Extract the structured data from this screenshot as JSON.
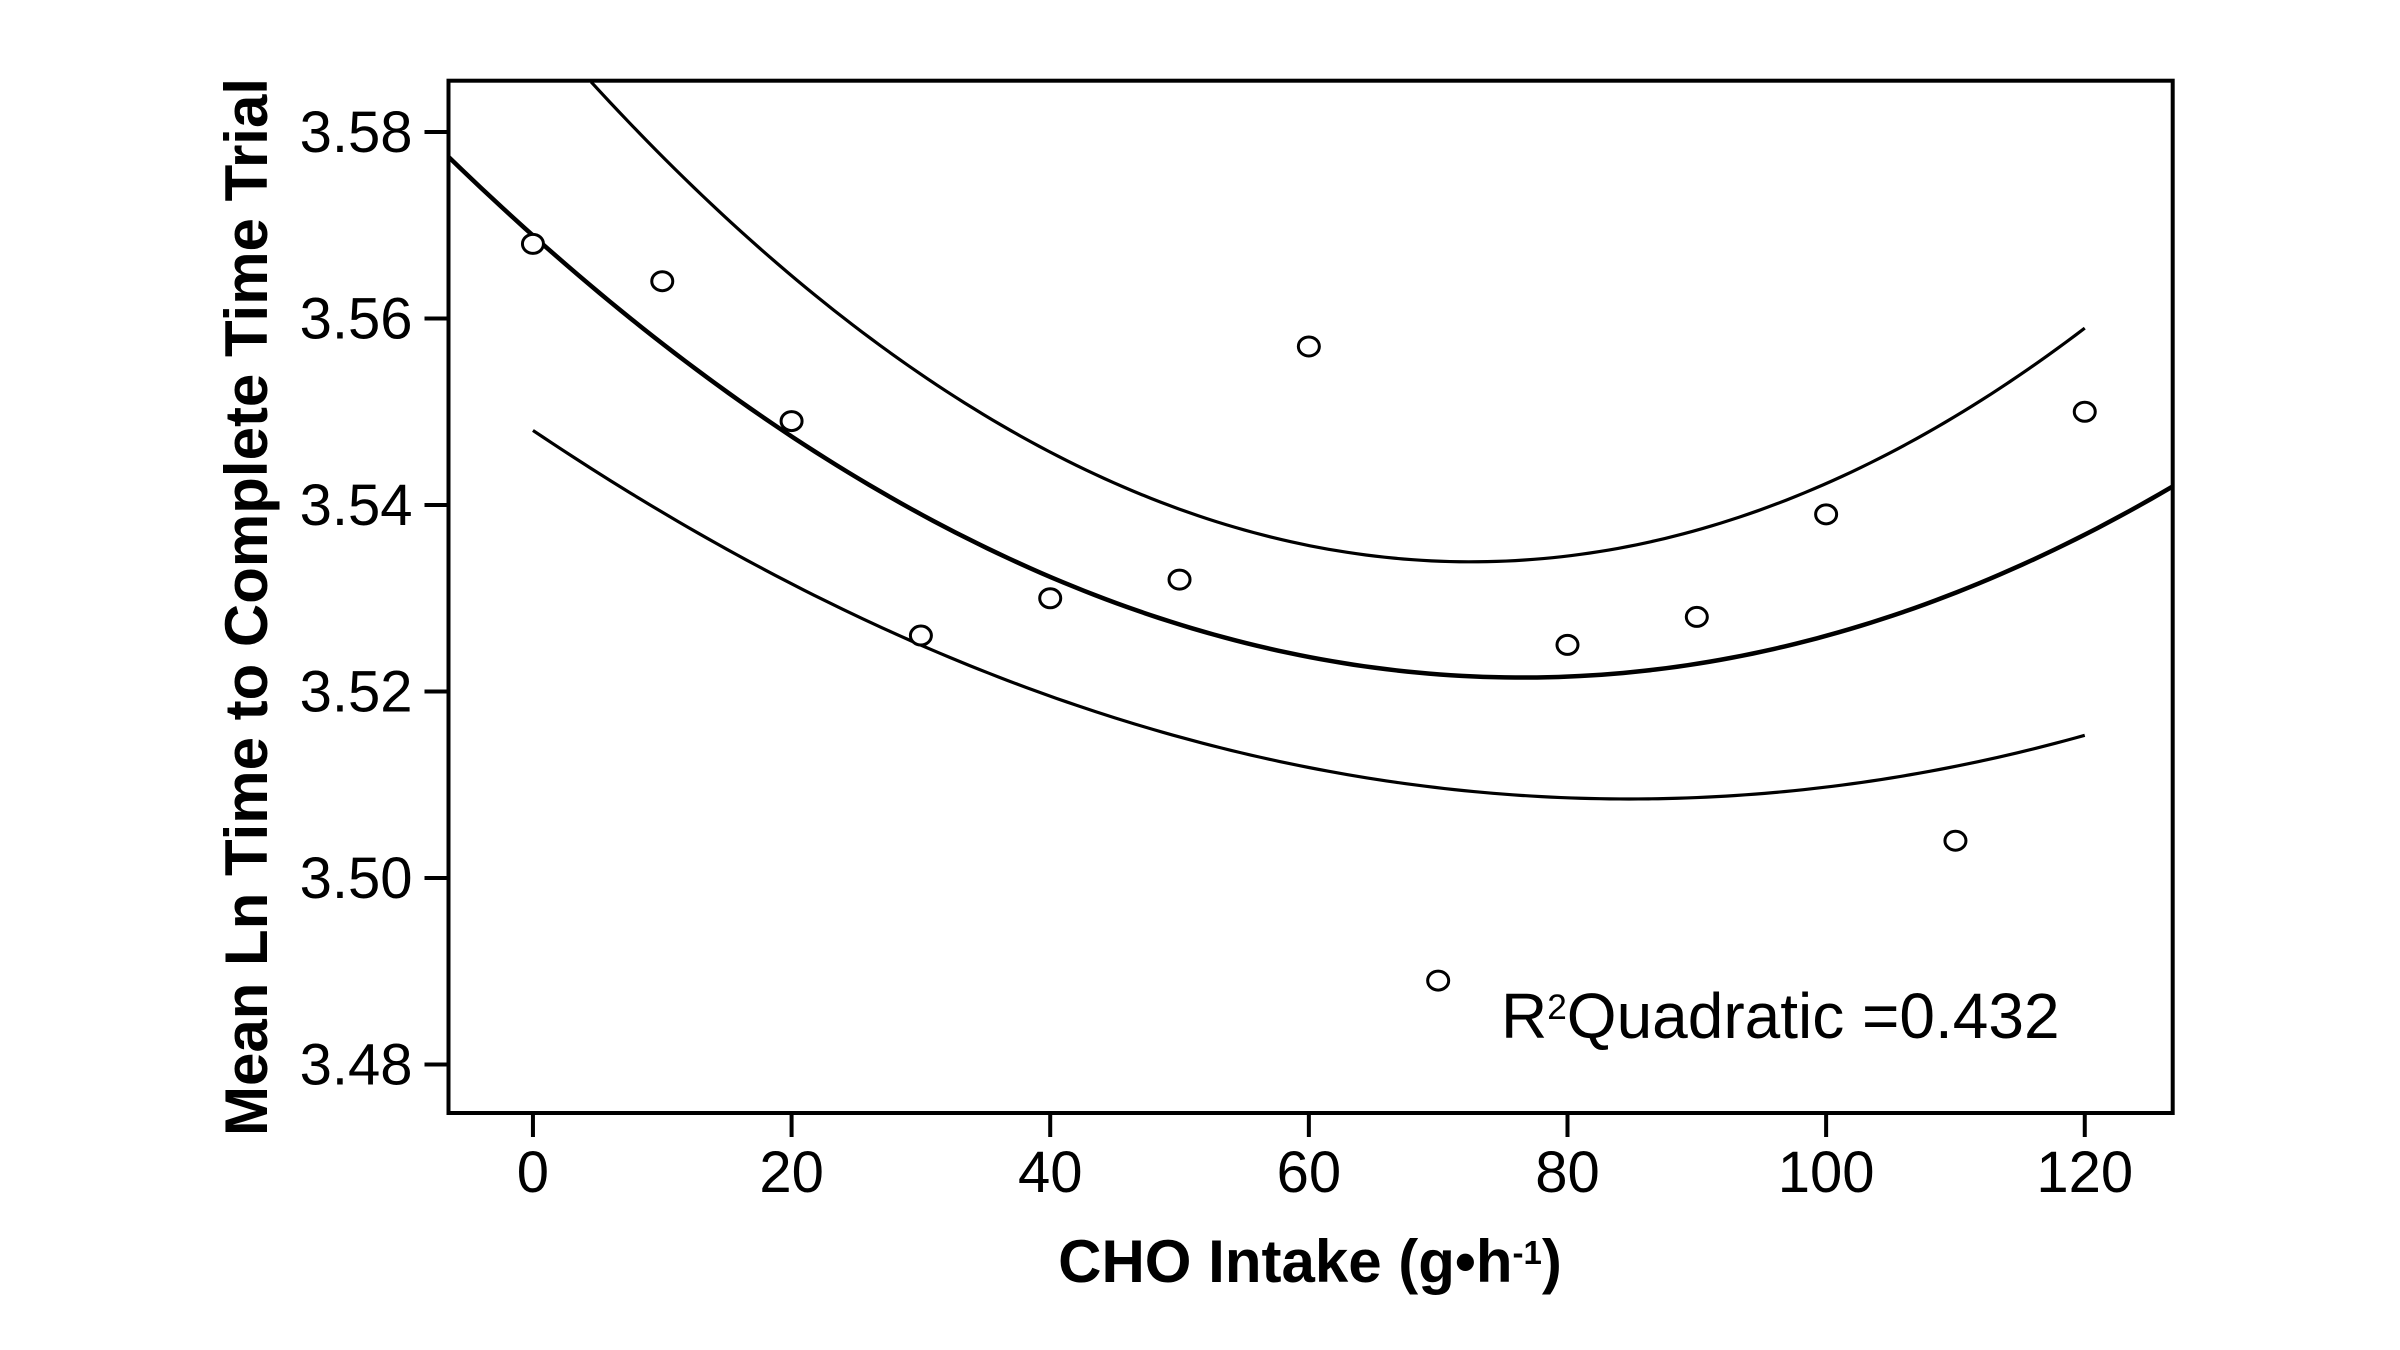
{
  "chart": {
    "y_axis": {
      "title": "Mean Ln Time to Complete Time Trial"
    },
    "x_axis": {
      "title_prefix": "CHO Intake (g•h",
      "title_sup": "-1",
      "title_suffix": ")"
    },
    "annotation": {
      "base": "R",
      "sup": "2",
      "rest": "Quadratic =0.432"
    }
  },
  "chart_data": {
    "type": "scatter",
    "title": "",
    "xlabel": "CHO Intake (g•h-1)",
    "ylabel": "Mean Ln Time to Complete Time Trial",
    "xlim": [
      -6.53,
      126.8
    ],
    "ylim": [
      3.4748,
      3.5855
    ],
    "grid": false,
    "legend": "none",
    "x_ticks": [
      0,
      20,
      40,
      60,
      80,
      100,
      120
    ],
    "y_tick_labels": [
      "3.58",
      "3.56",
      "3.54",
      "3.52",
      "3.50",
      "3.48"
    ],
    "points": {
      "x": [
        0,
        10,
        20,
        30,
        40,
        50,
        60,
        70,
        80,
        90,
        100,
        110,
        120
      ],
      "y": [
        3.568,
        3.564,
        3.549,
        3.526,
        3.53,
        3.532,
        3.557,
        3.489,
        3.525,
        3.528,
        3.539,
        3.504,
        3.55
      ]
    },
    "fit_curve": {
      "name": "quadratic-fit",
      "c0": 3.5689,
      "c1": -0.0012393,
      "c2": 8.1e-06,
      "x_range": [
        -6.53,
        126.8
      ]
    },
    "ci_upper": {
      "name": "upper-confidence-band",
      "c0": 3.5924,
      "c1": -0.001613,
      "c2": 1.112e-05,
      "x_range": [
        4.5,
        120
      ]
    },
    "ci_lower": {
      "name": "lower-confidence-band",
      "c0": 3.548,
      "c1": -0.0009325,
      "c2": 5.5e-06,
      "x_range": [
        0,
        120
      ]
    },
    "r2_quadratic": 0.432,
    "annotation": "R2Quadratic =0.432"
  }
}
